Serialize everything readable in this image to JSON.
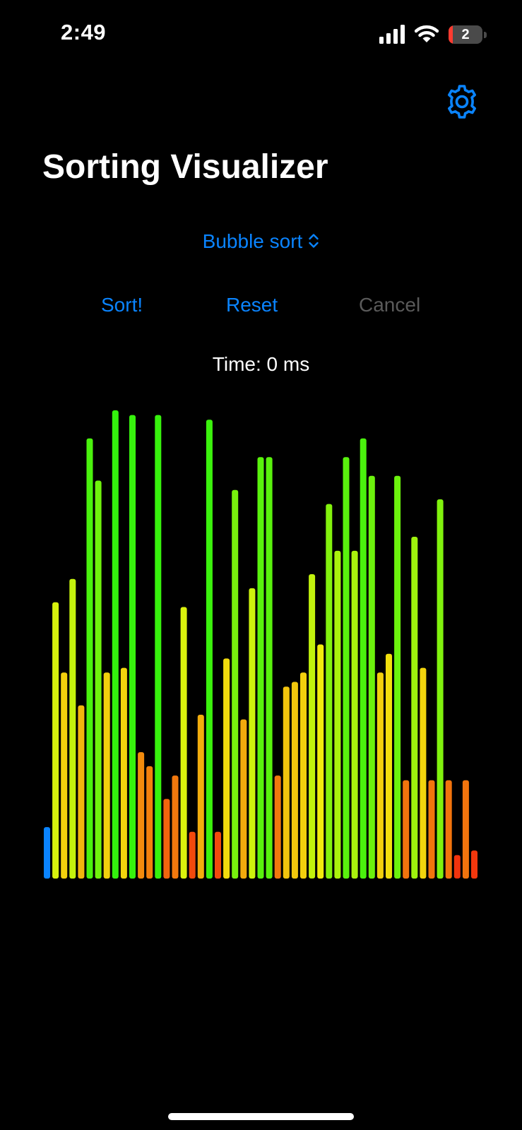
{
  "status_bar": {
    "time": "2:49",
    "battery_level": "2",
    "icons": [
      "cellular-signal-icon",
      "wifi-icon",
      "battery-icon"
    ]
  },
  "header": {
    "settings_icon": "gear-icon",
    "title": "Sorting Visualizer"
  },
  "controls": {
    "algorithm": "Bubble sort",
    "algorithm_icon": "chevron-up-down-icon",
    "sort_label": "Sort!",
    "reset_label": "Reset",
    "cancel_label": "Cancel",
    "time_prefix": "Time:",
    "time_value": "0",
    "time_unit": "ms"
  },
  "colors": {
    "accent": "#0a84ff",
    "disabled": "#5a5a5a",
    "background": "#000000",
    "highlight_bar": "#0a84ff"
  },
  "chart_data": {
    "type": "bar",
    "ylim": [
      0,
      100
    ],
    "highlighted_index": 0,
    "values": [
      11,
      59,
      44,
      64,
      37,
      94,
      85,
      44,
      100,
      45,
      99,
      27,
      24,
      99,
      17,
      22,
      58,
      10,
      35,
      98,
      10,
      47,
      83,
      34,
      62,
      90,
      90,
      22,
      41,
      42,
      44,
      65,
      50,
      80,
      70,
      90,
      70,
      94,
      86,
      44,
      48,
      86,
      21,
      73,
      45,
      21,
      81,
      21,
      5,
      21,
      6
    ]
  }
}
